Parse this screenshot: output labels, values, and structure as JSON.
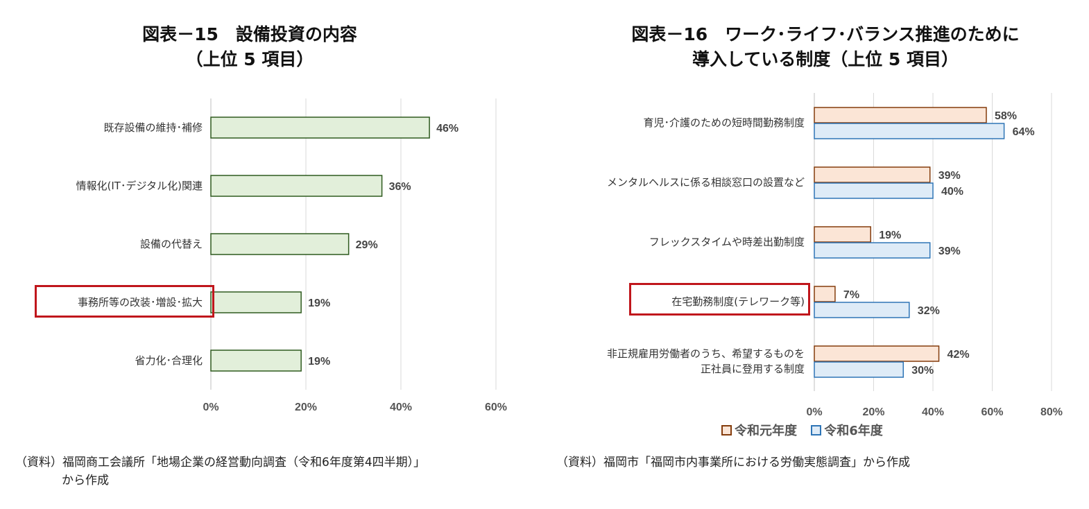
{
  "chart_data": [
    {
      "type": "bar",
      "orientation": "horizontal",
      "title": [
        "図表－15　設備投資の内容",
        "（上位 5 項目）"
      ],
      "categories": [
        "既存設備の維持･補修",
        "情報化(IT･デジタル化)関連",
        "設備の代替え",
        "事務所等の改装･増設･拡大",
        "省力化･合理化"
      ],
      "values": [
        46,
        36,
        29,
        19,
        19
      ],
      "value_labels": [
        "46%",
        "36%",
        "29%",
        "19%",
        "19%"
      ],
      "xlim": [
        0,
        60
      ],
      "xticks": [
        "0%",
        "20%",
        "40%",
        "60%"
      ],
      "highlighted_category": "事務所等の改装･増設･拡大",
      "bar_fill": "#e2efda",
      "bar_stroke": "#2e5a1e",
      "grid": true
    },
    {
      "type": "bar",
      "orientation": "horizontal",
      "title": [
        "図表－16　ワーク･ライフ･バランス推進のために",
        "導入している制度（上位 5 項目）"
      ],
      "categories": [
        [
          "育児･介護のための短時間勤務制度"
        ],
        [
          "メンタルヘルスに係る相談窓口の設置など"
        ],
        [
          "フレックスタイムや時差出勤制度"
        ],
        [
          "在宅勤務制度(テレワーク等)"
        ],
        [
          "非正規雇用労働者のうち、希望するものを",
          "正社員に登用する制度"
        ]
      ],
      "series": [
        {
          "name": "令和元年度",
          "values": [
            58,
            39,
            19,
            7,
            42
          ],
          "labels": [
            "58%",
            "39%",
            "19%",
            "7%",
            "42%"
          ],
          "fill": "#fbe5d6",
          "stroke": "#843c0c"
        },
        {
          "name": "令和6年度",
          "values": [
            64,
            40,
            39,
            32,
            30
          ],
          "labels": [
            "64%",
            "40%",
            "39%",
            "32%",
            "30%"
          ],
          "fill": "#deebf7",
          "stroke": "#2e75b6"
        }
      ],
      "xlim": [
        0,
        80
      ],
      "xticks": [
        "0%",
        "20%",
        "40%",
        "60%",
        "80%"
      ],
      "highlighted_category": "在宅勤務制度(テレワーク等)",
      "legend_position": "bottom",
      "grid": true
    }
  ],
  "sources": {
    "fig15": [
      "（資料）福岡商工会議所「地場企業の経営動向調査（令和6年度第4四半期）」",
      "から作成"
    ],
    "fig16": "（資料）福岡市「福岡市内事業所における労働実態調査」から作成"
  },
  "colors": {
    "highlight_box": "#c0161c",
    "gridline": "#d0d0d0"
  }
}
